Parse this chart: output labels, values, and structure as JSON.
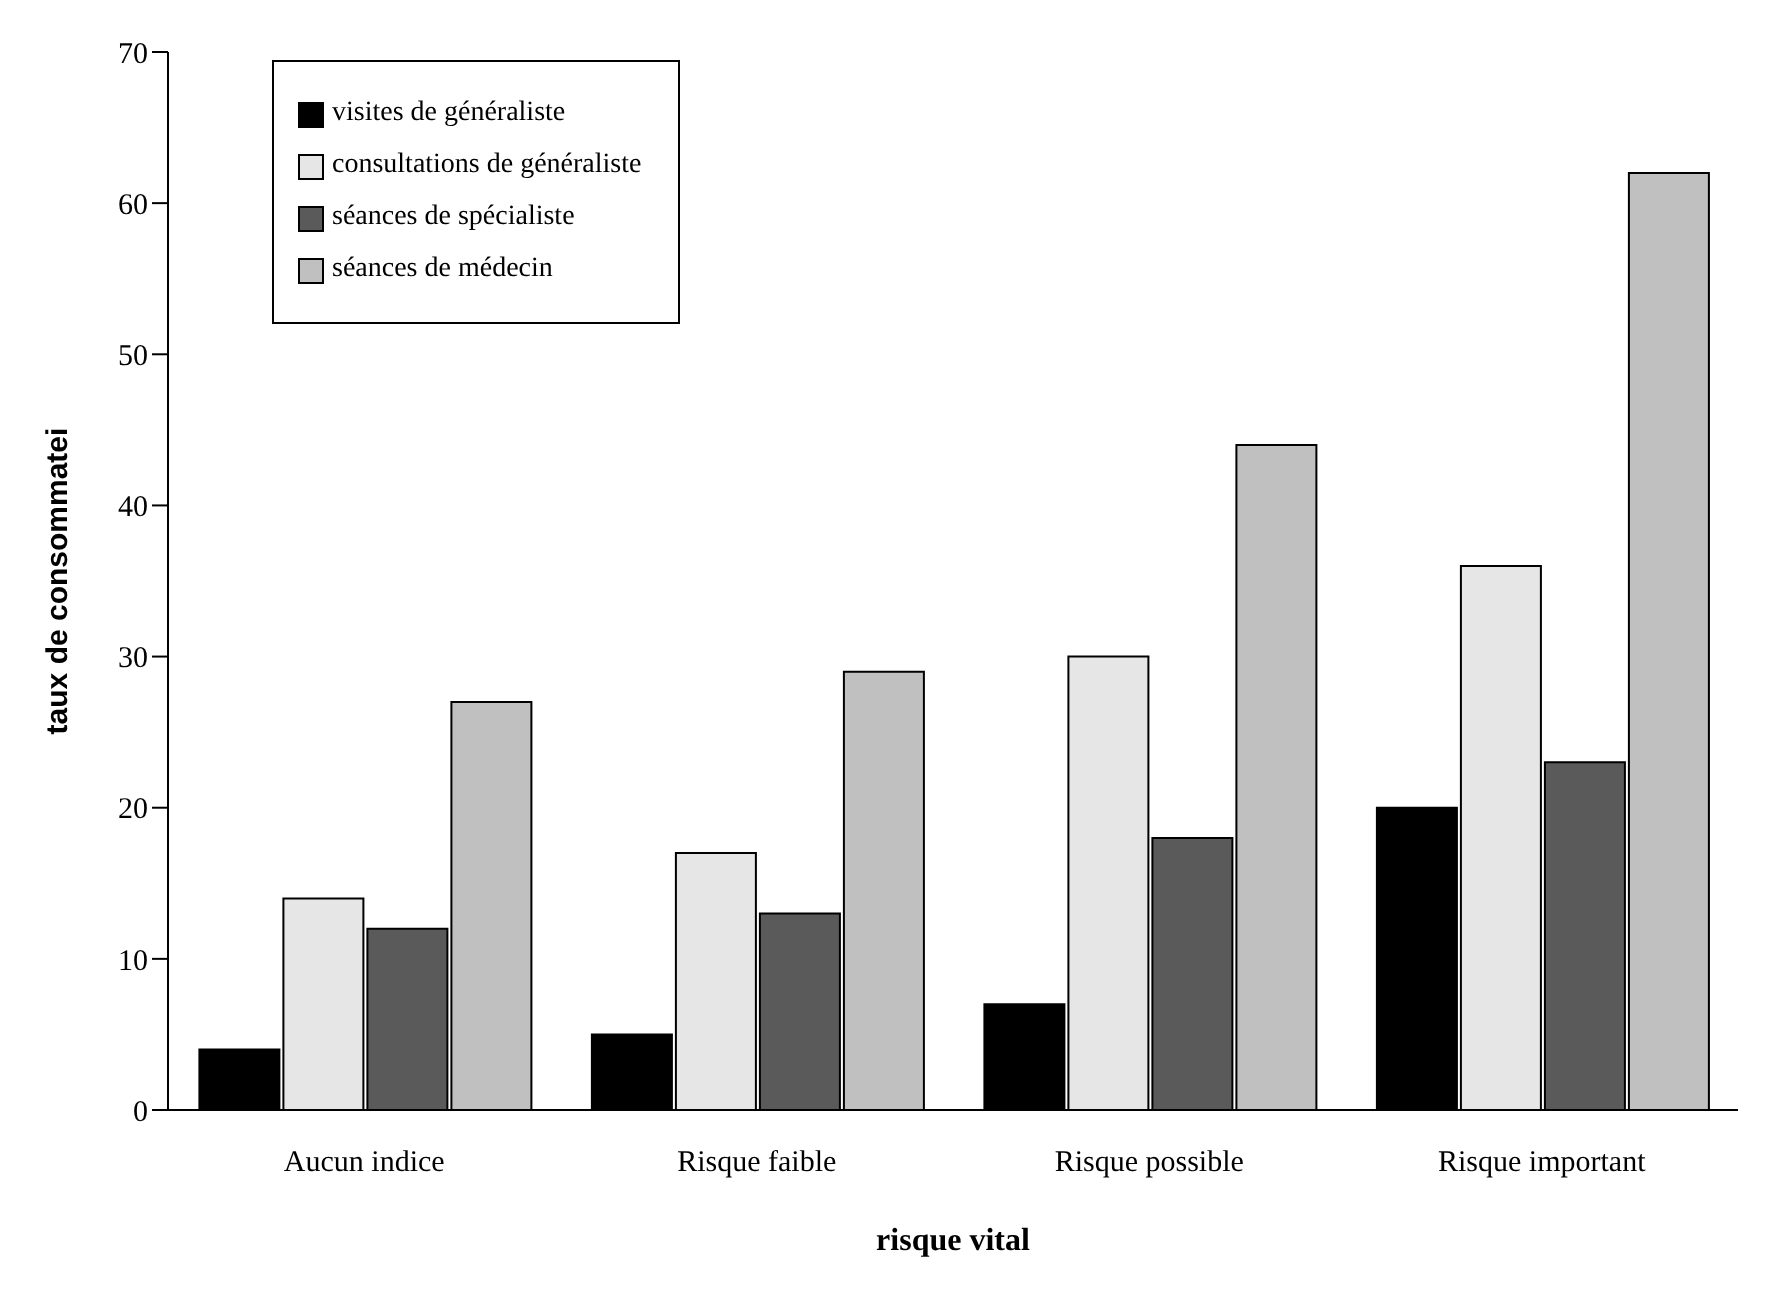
{
  "chart_data": {
    "type": "bar",
    "xlabel": "risque vital",
    "ylabel": "taux de consommatei",
    "categories": [
      "Aucun indice",
      "Risque faible",
      "Risque possible",
      "Risque important"
    ],
    "series": [
      {
        "name": "visites de généraliste",
        "color": "#000000",
        "values": [
          4,
          5,
          7,
          20
        ]
      },
      {
        "name": "consultations de généraliste",
        "color": "#e6e6e6",
        "values": [
          14,
          17,
          30,
          36
        ]
      },
      {
        "name": "séances de spécialiste",
        "color": "#5a5a5a",
        "values": [
          12,
          13,
          18,
          23
        ]
      },
      {
        "name": "séances de médecin",
        "color": "#c0c0c0",
        "values": [
          27,
          29,
          44,
          62
        ]
      }
    ],
    "ylim": [
      0,
      70
    ],
    "yticks": [
      0,
      10,
      20,
      30,
      40,
      50,
      60,
      70
    ],
    "grid": false,
    "legend": "top left"
  }
}
